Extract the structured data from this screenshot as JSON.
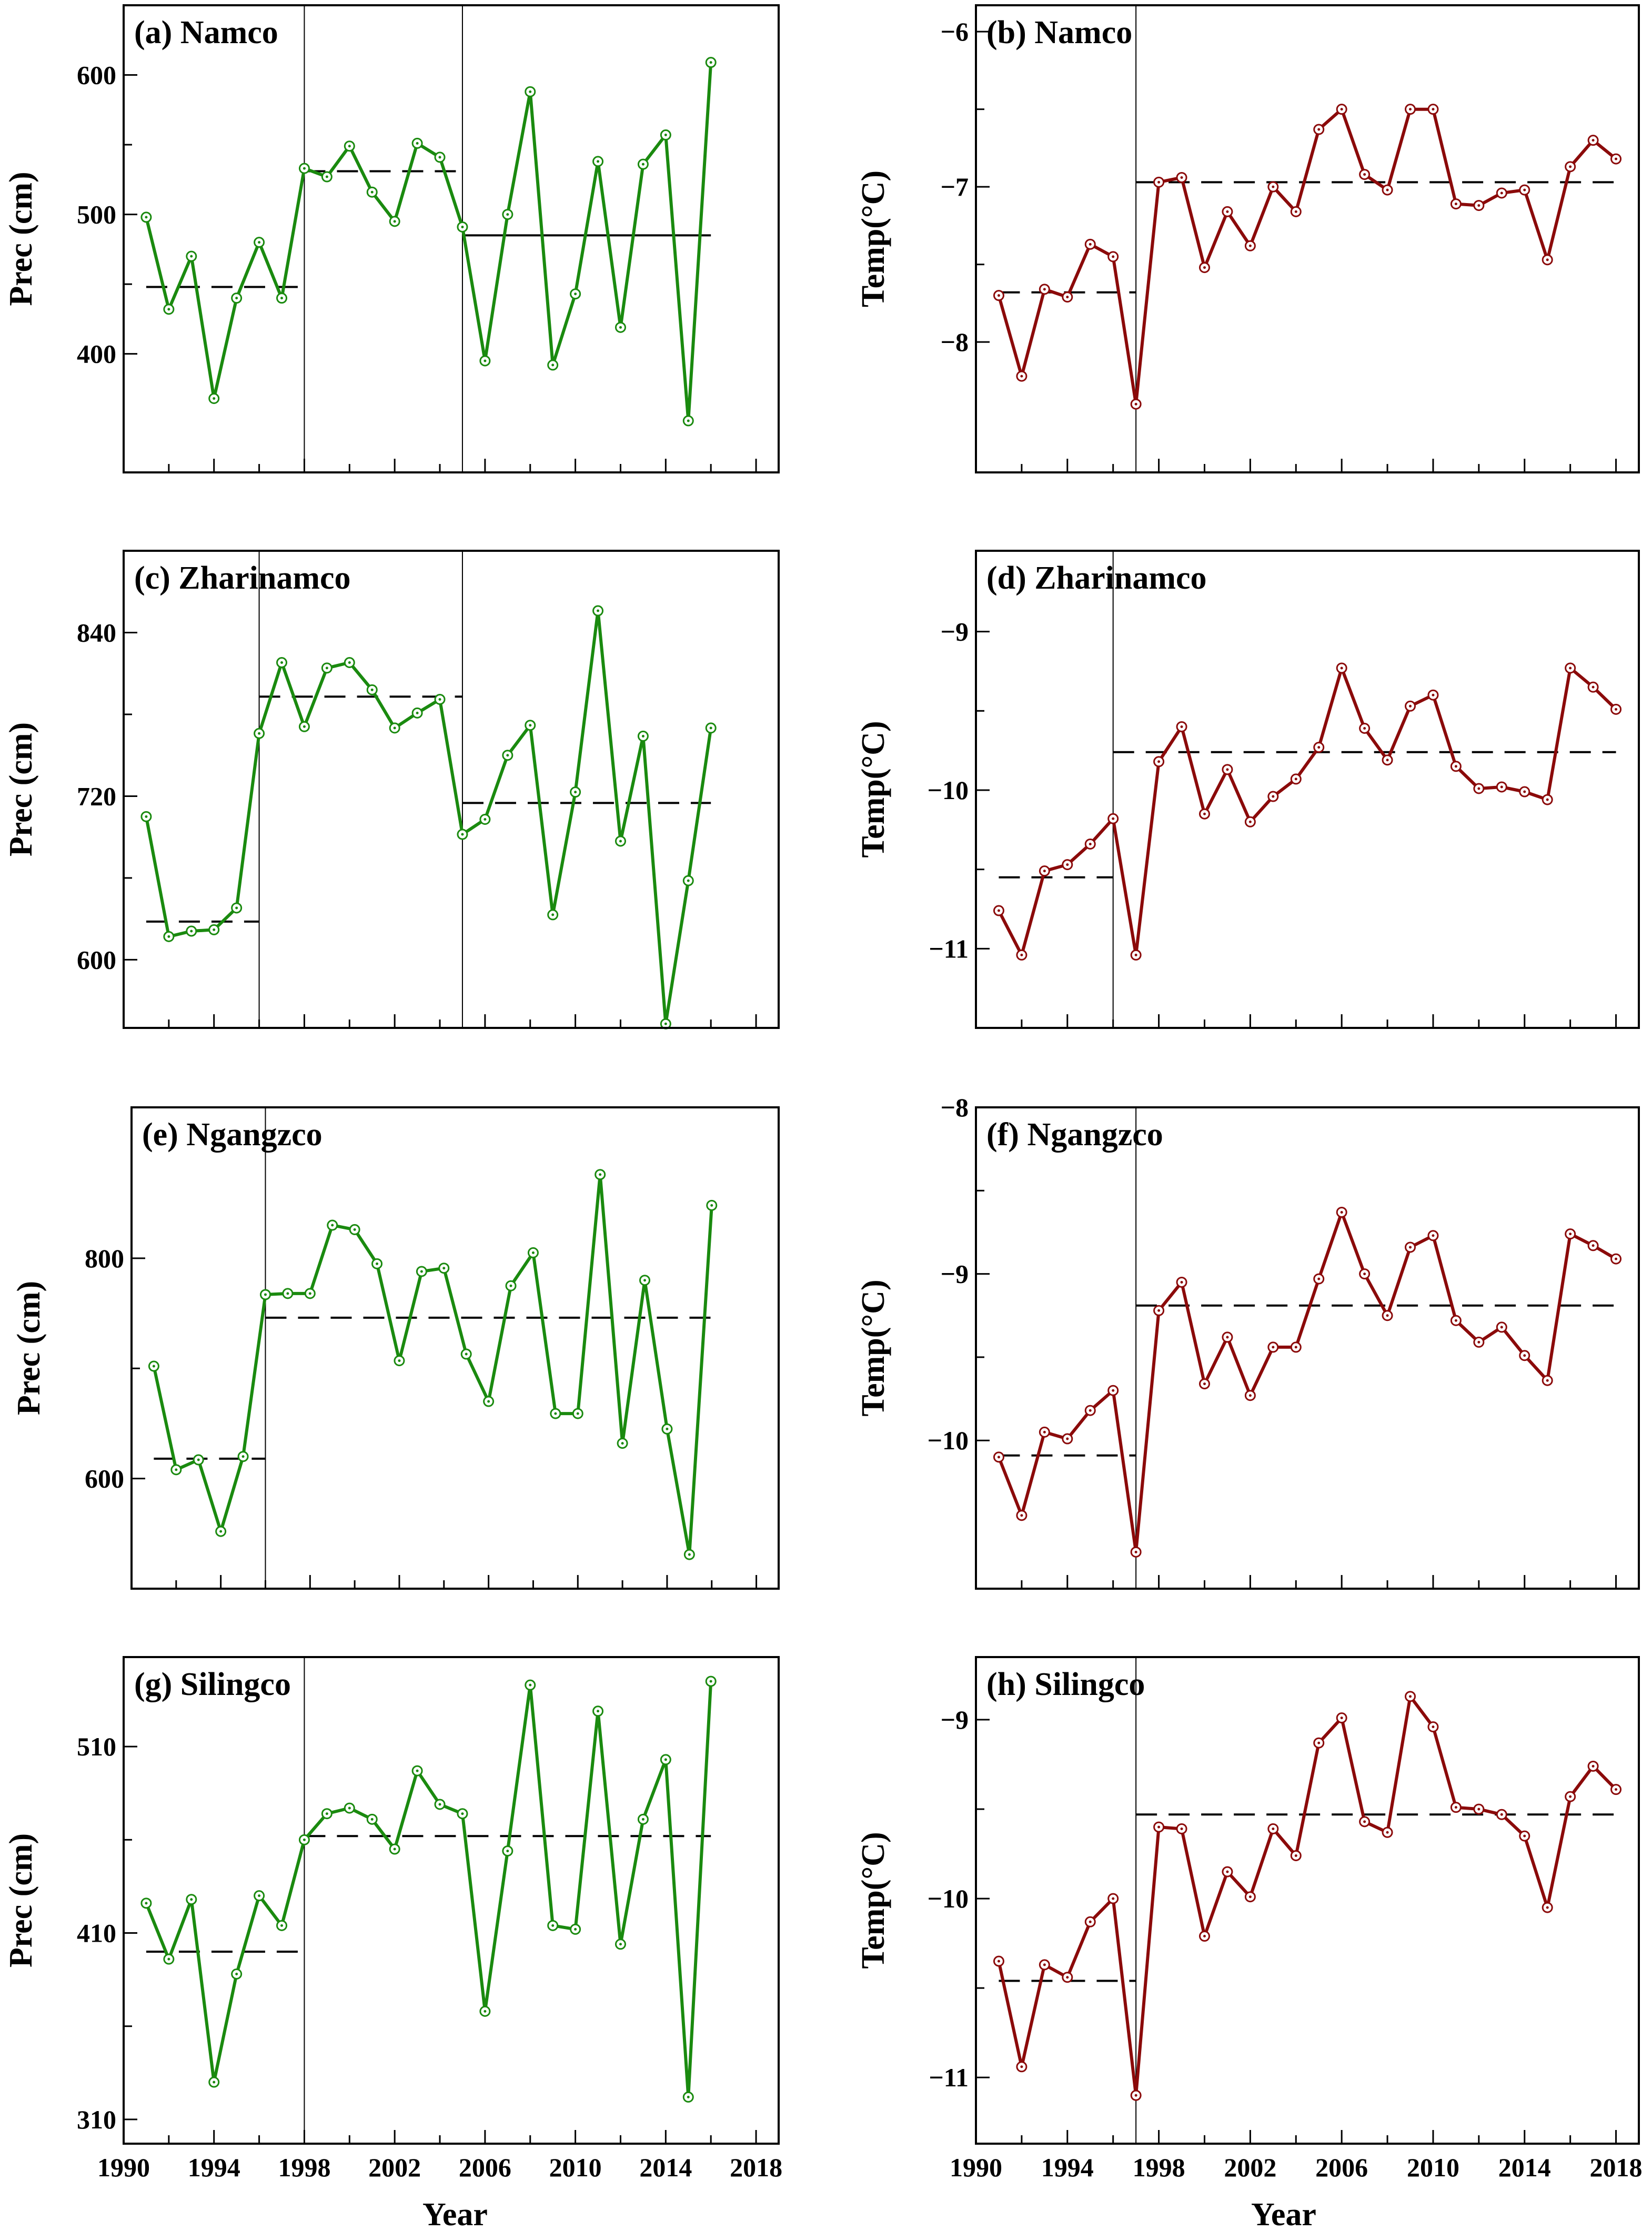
{
  "figure": {
    "xlabel": "Year"
  },
  "colors": {
    "precipitation": "#1a8a0f",
    "temperature": "#8b0a0a",
    "axis": "#000000",
    "mean_line": "#000000"
  },
  "chart_data": [
    {
      "type": "line",
      "title": "(a) Namco",
      "ylabel": "Prec (cm)",
      "variable": "precipitation",
      "xlim": [
        1990,
        2019
      ],
      "ylim": [
        315,
        650
      ],
      "yticks": [
        400,
        500,
        600
      ],
      "xticks": [
        1990,
        1994,
        1998,
        2002,
        2006,
        2010,
        2014,
        2018
      ],
      "x": [
        1991,
        1992,
        1993,
        1994,
        1995,
        1996,
        1997,
        1998,
        1999,
        2000,
        2001,
        2002,
        2003,
        2004,
        2005,
        2006,
        2007,
        2008,
        2009,
        2010,
        2011,
        2012,
        2013,
        2014,
        2015,
        2016
      ],
      "values": [
        498,
        432,
        470,
        368,
        440,
        480,
        440,
        533,
        527,
        549,
        516,
        495,
        551,
        541,
        491,
        395,
        500,
        588,
        392,
        443,
        538,
        419,
        536,
        557,
        352,
        609
      ],
      "change_points": [
        1998,
        2005
      ],
      "means": [
        {
          "start": 1991,
          "end": 1998,
          "value": 448,
          "style": "dashed"
        },
        {
          "start": 1998,
          "end": 2005,
          "value": 531,
          "style": "dashed"
        },
        {
          "start": 2005,
          "end": 2016,
          "value": 485,
          "style": "solid"
        }
      ]
    },
    {
      "type": "line",
      "title": "(b) Namco",
      "ylabel": "Temp(°C)",
      "variable": "temperature",
      "xlim": [
        1990,
        2019
      ],
      "ylim": [
        -8.84,
        -5.83
      ],
      "yticks": [
        -8,
        -7,
        -6
      ],
      "xticks": [
        1990,
        1994,
        1998,
        2002,
        2006,
        2010,
        2014,
        2018
      ],
      "x": [
        1991,
        1992,
        1993,
        1994,
        1995,
        1996,
        1997,
        1998,
        1999,
        2000,
        2001,
        2002,
        2003,
        2004,
        2005,
        2006,
        2007,
        2008,
        2009,
        2010,
        2011,
        2012,
        2013,
        2014,
        2015,
        2016,
        2017,
        2018
      ],
      "values": [
        -7.7,
        -8.22,
        -7.66,
        -7.71,
        -7.37,
        -7.45,
        -8.4,
        -6.97,
        -6.94,
        -7.52,
        -7.16,
        -7.38,
        -7.0,
        -7.16,
        -6.63,
        -6.5,
        -6.92,
        -7.02,
        -6.5,
        -6.5,
        -7.11,
        -7.12,
        -7.04,
        -7.02,
        -7.47,
        -6.87,
        -6.7,
        -6.82
      ],
      "change_points": [
        1997
      ],
      "means": [
        {
          "start": 1991,
          "end": 1997,
          "value": -7.68,
          "style": "dashed"
        },
        {
          "start": 1997,
          "end": 2018,
          "value": -6.97,
          "style": "dashed"
        }
      ]
    },
    {
      "type": "line",
      "title": "(c) Zharinamco",
      "ylabel": "Prec (cm)",
      "variable": "precipitation",
      "xlim": [
        1990,
        2019
      ],
      "ylim": [
        550,
        900
      ],
      "yticks": [
        600,
        720,
        840
      ],
      "xticks": [
        1990,
        1994,
        1998,
        2002,
        2006,
        2010,
        2014,
        2018
      ],
      "x": [
        1991,
        1992,
        1993,
        1994,
        1995,
        1996,
        1997,
        1998,
        1999,
        2000,
        2001,
        2002,
        2003,
        2004,
        2005,
        2006,
        2007,
        2008,
        2009,
        2010,
        2011,
        2012,
        2013,
        2014,
        2015,
        2016
      ],
      "values": [
        705,
        617,
        621,
        622,
        638,
        766,
        818,
        771,
        814,
        818,
        798,
        770,
        781,
        791,
        692,
        703,
        750,
        772,
        633,
        723,
        856,
        687,
        764,
        553,
        658,
        770
      ],
      "change_points": [
        1996,
        2005
      ],
      "means": [
        {
          "start": 1991,
          "end": 1996,
          "value": 628,
          "style": "dashed"
        },
        {
          "start": 1996,
          "end": 2005,
          "value": 793,
          "style": "dashed"
        },
        {
          "start": 2005,
          "end": 2016,
          "value": 715,
          "style": "dashed"
        }
      ]
    },
    {
      "type": "line",
      "title": "(d) Zharinamco",
      "ylabel": "Temp(°C)",
      "variable": "temperature",
      "xlim": [
        1990,
        2019
      ],
      "ylim": [
        -11.5,
        -8.49
      ],
      "yticks": [
        -11,
        -10,
        -9
      ],
      "xticks": [
        1990,
        1994,
        1998,
        2002,
        2006,
        2010,
        2014,
        2018
      ],
      "x": [
        1991,
        1992,
        1993,
        1994,
        1995,
        1996,
        1997,
        1998,
        1999,
        2000,
        2001,
        2002,
        2003,
        2004,
        2005,
        2006,
        2007,
        2008,
        2009,
        2010,
        2011,
        2012,
        2013,
        2014,
        2015,
        2016,
        2017,
        2018
      ],
      "values": [
        -10.76,
        -11.04,
        -10.51,
        -10.47,
        -10.34,
        -10.18,
        -11.04,
        -9.82,
        -9.6,
        -10.15,
        -9.87,
        -10.2,
        -10.04,
        -9.93,
        -9.73,
        -9.23,
        -9.61,
        -9.81,
        -9.47,
        -9.4,
        -9.85,
        -9.99,
        -9.98,
        -10.01,
        -10.06,
        -9.23,
        -9.35,
        -9.49
      ],
      "change_points": [
        1996
      ],
      "means": [
        {
          "start": 1991,
          "end": 1996,
          "value": -10.55,
          "style": "dashed"
        },
        {
          "start": 1996,
          "end": 2018,
          "value": -9.76,
          "style": "dashed"
        }
      ]
    },
    {
      "type": "line",
      "title": "(e) Ngangzco",
      "ylabel": "Prec (cm)",
      "variable": "precipitation",
      "xlim": [
        1990,
        2019
      ],
      "ylim": [
        500,
        937
      ],
      "yticks": [
        600,
        800
      ],
      "xticks": [
        1990,
        1994,
        1998,
        2002,
        2006,
        2010,
        2014,
        2018
      ],
      "x": [
        1991,
        1992,
        1993,
        1994,
        1995,
        1996,
        1997,
        1998,
        1999,
        2000,
        2001,
        2002,
        2003,
        2004,
        2005,
        2006,
        2007,
        2008,
        2009,
        2010,
        2011,
        2012,
        2013,
        2014,
        2015,
        2016
      ],
      "values": [
        702,
        608,
        617,
        552,
        620,
        767,
        768,
        768,
        830,
        826,
        795,
        707,
        788,
        791,
        713,
        670,
        775,
        805,
        659,
        659,
        876,
        632,
        780,
        645,
        531,
        848
      ],
      "change_points": [
        1996
      ],
      "means": [
        {
          "start": 1991,
          "end": 1996,
          "value": 618,
          "style": "dashed"
        },
        {
          "start": 1996,
          "end": 2016,
          "value": 746,
          "style": "dashed"
        }
      ]
    },
    {
      "type": "line",
      "title": "(f) Ngangzco",
      "ylabel": "Temp(°C)",
      "variable": "temperature",
      "xlim": [
        1990,
        2019
      ],
      "ylim": [
        -10.89,
        -8.0
      ],
      "yticks": [
        -10,
        -9,
        -8
      ],
      "xticks": [
        1990,
        1994,
        1998,
        2002,
        2006,
        2010,
        2014,
        2018
      ],
      "x": [
        1991,
        1992,
        1993,
        1994,
        1995,
        1996,
        1997,
        1998,
        1999,
        2000,
        2001,
        2002,
        2003,
        2004,
        2005,
        2006,
        2007,
        2008,
        2009,
        2010,
        2011,
        2012,
        2013,
        2014,
        2015,
        2016,
        2017,
        2018
      ],
      "values": [
        -10.1,
        -10.45,
        -9.95,
        -9.99,
        -9.82,
        -9.7,
        -10.67,
        -9.22,
        -9.05,
        -9.66,
        -9.38,
        -9.73,
        -9.44,
        -9.44,
        -9.03,
        -8.63,
        -9.0,
        -9.25,
        -8.84,
        -8.77,
        -9.28,
        -9.41,
        -9.32,
        -9.49,
        -9.64,
        -8.76,
        -8.83,
        -8.91
      ],
      "change_points": [
        1997
      ],
      "means": [
        {
          "start": 1991,
          "end": 1997,
          "value": -10.09,
          "style": "dashed"
        },
        {
          "start": 1997,
          "end": 2018,
          "value": -9.19,
          "style": "dashed"
        }
      ]
    },
    {
      "type": "line",
      "title": "(g) Silingco",
      "ylabel": "Prec (cm)",
      "variable": "precipitation",
      "xlim": [
        1990,
        2019
      ],
      "ylim": [
        297,
        558
      ],
      "yticks": [
        310,
        410,
        510
      ],
      "xticks": [
        1990,
        1994,
        1998,
        2002,
        2006,
        2010,
        2014,
        2018
      ],
      "x": [
        1991,
        1992,
        1993,
        1994,
        1995,
        1996,
        1997,
        1998,
        1999,
        2000,
        2001,
        2002,
        2003,
        2004,
        2005,
        2006,
        2007,
        2008,
        2009,
        2010,
        2011,
        2012,
        2013,
        2014,
        2015,
        2016
      ],
      "values": [
        426,
        396,
        428,
        330,
        388,
        430,
        414,
        460,
        474,
        477,
        471,
        455,
        497,
        479,
        474,
        368,
        454,
        543,
        414,
        412,
        529,
        404,
        471,
        503,
        322,
        545
      ],
      "change_points": [
        1998
      ],
      "means": [
        {
          "start": 1991,
          "end": 1998,
          "value": 400,
          "style": "dashed"
        },
        {
          "start": 1998,
          "end": 2016,
          "value": 462,
          "style": "dashed"
        }
      ]
    },
    {
      "type": "line",
      "title": "(h) Silingco",
      "ylabel": "Temp(°C)",
      "variable": "temperature",
      "xlim": [
        1990,
        2019
      ],
      "ylim": [
        -11.37,
        -8.65
      ],
      "yticks": [
        -11,
        -10,
        -9
      ],
      "xticks": [
        1990,
        1994,
        1998,
        2002,
        2006,
        2010,
        2014,
        2018
      ],
      "x": [
        1991,
        1992,
        1993,
        1994,
        1995,
        1996,
        1997,
        1998,
        1999,
        2000,
        2001,
        2002,
        2003,
        2004,
        2005,
        2006,
        2007,
        2008,
        2009,
        2010,
        2011,
        2012,
        2013,
        2014,
        2015,
        2016,
        2017,
        2018
      ],
      "values": [
        -10.35,
        -10.94,
        -10.37,
        -10.44,
        -10.13,
        -10.0,
        -11.1,
        -9.6,
        -9.61,
        -10.21,
        -9.85,
        -9.99,
        -9.61,
        -9.76,
        -9.13,
        -8.99,
        -9.57,
        -9.63,
        -8.87,
        -9.04,
        -9.49,
        -9.5,
        -9.53,
        -9.65,
        -10.05,
        -9.43,
        -9.26,
        -9.39
      ],
      "change_points": [
        1997
      ],
      "means": [
        {
          "start": 1991,
          "end": 1997,
          "value": -10.46,
          "style": "dashed"
        },
        {
          "start": 1997,
          "end": 2018,
          "value": -9.53,
          "style": "dashed"
        }
      ]
    }
  ]
}
